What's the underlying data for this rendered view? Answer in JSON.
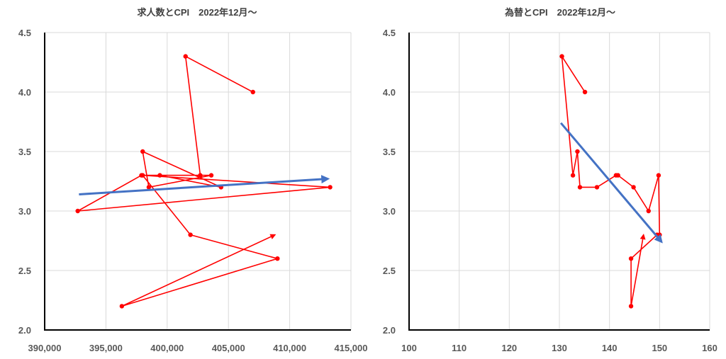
{
  "chart_data": [
    {
      "type": "line",
      "title": "求人数とCPI　2022年12月～",
      "xlabel": "",
      "ylabel": "",
      "xlim": [
        390000,
        415000
      ],
      "ylim": [
        2.0,
        4.5
      ],
      "xticks": [
        390000,
        395000,
        400000,
        405000,
        410000,
        415000
      ],
      "xtick_labels": [
        "390,000",
        "395,000",
        "400,000",
        "405,000",
        "410,000",
        "415,000"
      ],
      "yticks": [
        2.0,
        2.5,
        3.0,
        3.5,
        4.0,
        4.5
      ],
      "ytick_labels": [
        "2.0",
        "2.5",
        "3.0",
        "3.5",
        "4.0",
        "4.5"
      ],
      "grid": true,
      "legend": "none",
      "series": [
        {
          "color": "#ff0000",
          "end_arrow": true,
          "points": [
            [
              407000,
              4.0
            ],
            [
              401500,
              4.3
            ],
            [
              402700,
              3.3
            ],
            [
              399400,
              3.3
            ],
            [
              404400,
              3.2
            ],
            [
              398000,
              3.5
            ],
            [
              398500,
              3.2
            ],
            [
              403600,
              3.3
            ],
            [
              397900,
              3.3
            ],
            [
              392700,
              3.0
            ],
            [
              413300,
              3.2
            ],
            [
              398000,
              3.3
            ],
            [
              401900,
              2.8
            ],
            [
              409000,
              2.6
            ],
            [
              396300,
              2.2
            ],
            [
              408800,
              2.8
            ]
          ]
        }
      ],
      "trend": {
        "color": "#4472c4",
        "from": [
          392800,
          3.14
        ],
        "to": [
          413000,
          3.27
        ]
      }
    },
    {
      "type": "line",
      "title": "為替とCPI　2022年12月～",
      "xlabel": "",
      "ylabel": "",
      "xlim": [
        100,
        160
      ],
      "ylim": [
        2.0,
        4.5
      ],
      "xticks": [
        100,
        110,
        120,
        130,
        140,
        150,
        160
      ],
      "xtick_labels": [
        "100",
        "110",
        "120",
        "130",
        "140",
        "150",
        "160"
      ],
      "yticks": [
        2.0,
        2.5,
        3.0,
        3.5,
        4.0,
        4.5
      ],
      "ytick_labels": [
        "2.0",
        "2.5",
        "3.0",
        "3.5",
        "4.0",
        "4.5"
      ],
      "grid": true,
      "legend": "none",
      "series": [
        {
          "color": "#ff0000",
          "end_arrow": true,
          "points": [
            [
              135.1,
              4.0
            ],
            [
              130.5,
              4.3
            ],
            [
              132.7,
              3.3
            ],
            [
              133.6,
              3.5
            ],
            [
              134.1,
              3.2
            ],
            [
              137.5,
              3.2
            ],
            [
              141.3,
              3.3
            ],
            [
              141.7,
              3.3
            ],
            [
              144.8,
              3.2
            ],
            [
              147.8,
              3.0
            ],
            [
              149.8,
              3.3
            ],
            [
              150.0,
              2.8
            ],
            [
              149.5,
              2.8
            ],
            [
              144.3,
              2.6
            ],
            [
              144.3,
              2.2
            ],
            [
              146.8,
              2.8
            ]
          ]
        }
      ],
      "trend": {
        "color": "#4472c4",
        "from": [
          130.3,
          3.74
        ],
        "to": [
          150.2,
          2.75
        ]
      }
    }
  ]
}
